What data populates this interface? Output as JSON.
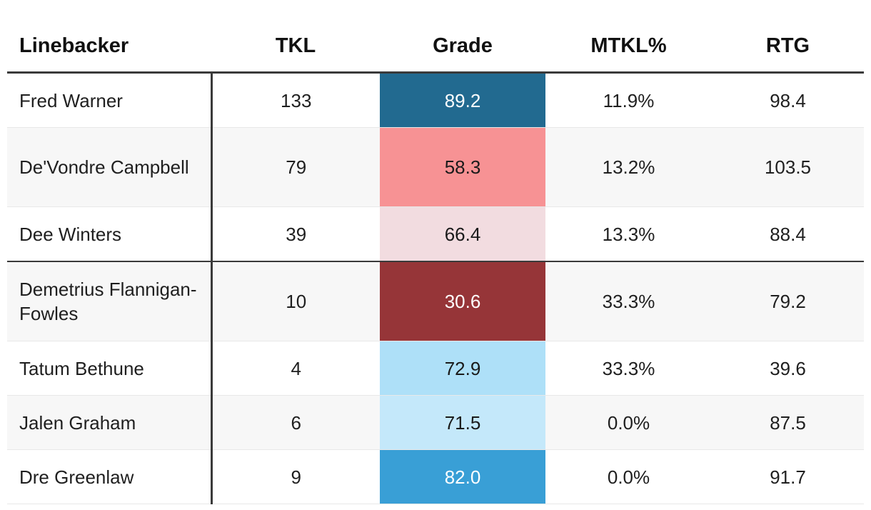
{
  "chart_data": {
    "type": "table",
    "columns": [
      "Linebacker",
      "TKL",
      "Grade",
      "MTKL%",
      "RTG"
    ],
    "rows": [
      {
        "linebacker": "Fred Warner",
        "tkl": "133",
        "grade": "89.2",
        "mtkl": "11.9%",
        "rtg": "98.4",
        "grade_color": "#226a90",
        "grade_text": "light"
      },
      {
        "linebacker": "De'Vondre Campbell",
        "tkl": "79",
        "grade": "58.3",
        "mtkl": "13.2%",
        "rtg": "103.5",
        "grade_color": "#f79294",
        "grade_text": "dark"
      },
      {
        "linebacker": "Dee Winters",
        "tkl": "39",
        "grade": "66.4",
        "mtkl": "13.3%",
        "rtg": "88.4",
        "grade_color": "#f2dce0",
        "grade_text": "dark"
      },
      {
        "linebacker": "Demetrius Flannigan-Fowles",
        "tkl": "10",
        "grade": "30.6",
        "mtkl": "33.3%",
        "rtg": "79.2",
        "grade_color": "#963538",
        "grade_text": "light"
      },
      {
        "linebacker": "Tatum Bethune",
        "tkl": "4",
        "grade": "72.9",
        "mtkl": "33.3%",
        "rtg": "39.6",
        "grade_color": "#aee0f8",
        "grade_text": "dark"
      },
      {
        "linebacker": "Jalen Graham",
        "tkl": "6",
        "grade": "71.5",
        "mtkl": "0.0%",
        "rtg": "87.5",
        "grade_color": "#c4e8fa",
        "grade_text": "dark"
      },
      {
        "linebacker": "Dre Greenlaw",
        "tkl": "9",
        "grade": "82.0",
        "mtkl": "0.0%",
        "rtg": "91.7",
        "grade_color": "#399fd6",
        "grade_text": "light"
      }
    ]
  }
}
